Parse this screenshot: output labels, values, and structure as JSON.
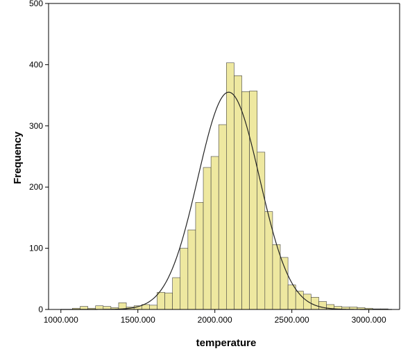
{
  "chart_data": {
    "type": "bar",
    "subtype": "histogram with normal curve",
    "xlabel": "temperature",
    "ylabel": "Frequency",
    "xlim": [
      920,
      3200
    ],
    "ylim": [
      0,
      500
    ],
    "x_ticks": [
      "1000.000",
      "1500.000",
      "2000.000",
      "2500.000",
      "3000.000"
    ],
    "x_tick_values": [
      1000,
      1500,
      2000,
      2500,
      3000
    ],
    "y_ticks": [
      "0",
      "100",
      "200",
      "300",
      "400",
      "500"
    ],
    "y_tick_values": [
      0,
      100,
      200,
      300,
      400,
      500
    ],
    "bin_width": 50,
    "bin_starts": [
      1075,
      1125,
      1175,
      1225,
      1275,
      1325,
      1375,
      1425,
      1475,
      1525,
      1575,
      1625,
      1675,
      1725,
      1775,
      1825,
      1875,
      1925,
      1975,
      2025,
      2075,
      2125,
      2175,
      2225,
      2275,
      2325,
      2375,
      2425,
      2475,
      2525,
      2575,
      2625,
      2675,
      2725,
      2775,
      2825,
      2875,
      2925,
      2975,
      3025,
      3075
    ],
    "values": [
      2,
      5,
      2,
      6,
      5,
      3,
      11,
      4,
      6,
      8,
      7,
      28,
      27,
      52,
      100,
      130,
      175,
      232,
      250,
      302,
      403,
      382,
      356,
      357,
      257,
      160,
      106,
      85,
      40,
      30,
      25,
      20,
      13,
      8,
      5,
      4,
      4,
      3,
      2,
      1,
      1
    ],
    "normal_curve": {
      "mean": 2090,
      "sd": 200,
      "peak": 355
    },
    "colors": {
      "bar_fill": "#eee8a0",
      "bar_stroke": "#404040",
      "curve": "#222222",
      "axis": "#000000"
    },
    "grid": false,
    "legend": "none"
  }
}
